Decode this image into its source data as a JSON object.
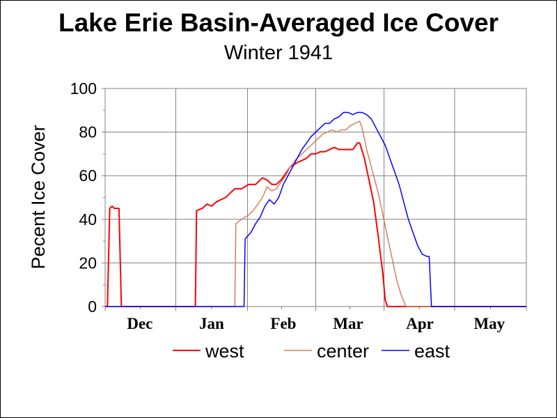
{
  "chart_data": {
    "type": "line",
    "title": "Lake Erie Basin-Averaged Ice Cover",
    "subtitle": "Winter 1941",
    "ylabel": "Pecent Ice Cover",
    "xlabel": "",
    "ylim": [
      0,
      100
    ],
    "yticks": [
      "0",
      "20",
      "40",
      "60",
      "80",
      "100"
    ],
    "xlim": [
      0,
      182
    ],
    "month_labels": [
      "Dec",
      "Jan",
      "Feb",
      "Mar",
      "Apr",
      "May"
    ],
    "month_positions": [
      15,
      46,
      77,
      105,
      136,
      166
    ],
    "grid": true,
    "legend_placement": "bottom",
    "series": [
      {
        "name": "west",
        "color": "#ff0000",
        "x": [
          0,
          1,
          2,
          3,
          4,
          6,
          7,
          8,
          26,
          39,
          39.5,
          42,
          44,
          46,
          48,
          50,
          52,
          54,
          56,
          59,
          62,
          65,
          68,
          70,
          72,
          74,
          76,
          78,
          80,
          83,
          85,
          87,
          89,
          91,
          93,
          95,
          97,
          99,
          101,
          103,
          105,
          107,
          109,
          110,
          112,
          114,
          116,
          118,
          120,
          121,
          122,
          124,
          126,
          182
        ],
        "y": [
          0,
          0,
          45,
          46,
          45,
          45,
          0,
          0,
          0,
          0,
          44,
          45,
          47,
          46,
          48,
          49,
          50,
          52,
          54,
          54,
          56,
          56,
          59,
          58,
          56,
          56,
          58,
          61,
          64,
          66,
          67,
          68,
          70,
          70,
          71,
          71,
          72,
          73,
          72,
          72,
          72,
          72,
          75,
          75,
          68,
          58,
          48,
          32,
          15,
          3,
          0,
          0,
          0,
          0
        ]
      },
      {
        "name": "center",
        "color": "#d08060",
        "x": [
          0,
          56,
          56.5,
          59,
          62,
          64,
          66,
          68,
          70,
          72,
          74,
          76,
          78,
          80,
          82,
          84,
          86,
          88,
          90,
          92,
          94,
          96,
          98,
          100,
          102,
          104,
          106,
          108,
          110,
          111,
          112,
          113,
          114,
          116,
          118,
          120,
          122,
          124,
          126,
          128,
          130,
          132,
          134,
          182
        ],
        "y": [
          0,
          0,
          38,
          40,
          42,
          44,
          47,
          50,
          55,
          53,
          54,
          57,
          60,
          64,
          67,
          69,
          71,
          73,
          75,
          77,
          79,
          80,
          81,
          80,
          81,
          81,
          83,
          84,
          85,
          82,
          77,
          72,
          68,
          60,
          52,
          42,
          32,
          22,
          12,
          5,
          0,
          0,
          0,
          0
        ]
      },
      {
        "name": "east",
        "color": "#0000ff",
        "x": [
          0,
          60,
          60.5,
          63,
          65,
          67,
          69,
          71,
          73,
          75,
          77,
          79,
          81,
          83,
          85,
          87,
          89,
          91,
          93,
          95,
          97,
          99,
          101,
          103,
          105,
          107,
          109,
          111,
          113,
          115,
          117,
          119,
          121,
          123,
          125,
          127,
          129,
          131,
          133,
          135,
          137,
          139,
          140,
          141,
          142,
          182
        ],
        "y": [
          0,
          0,
          31,
          34,
          38,
          41,
          46,
          49,
          47,
          50,
          56,
          60,
          64,
          68,
          72,
          75,
          78,
          80,
          82,
          84,
          84,
          86,
          87,
          89,
          89,
          88,
          89,
          89,
          88,
          86,
          82,
          78,
          74,
          68,
          62,
          56,
          48,
          40,
          34,
          28,
          24,
          23,
          23,
          0,
          0,
          0
        ]
      }
    ]
  }
}
